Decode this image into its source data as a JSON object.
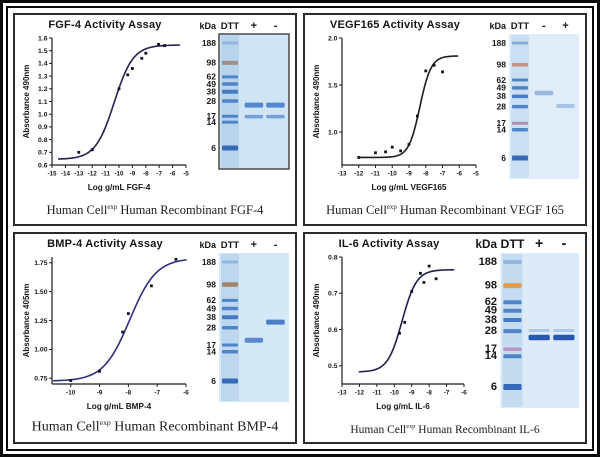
{
  "panels": [
    {
      "caption": {
        "pre": "Human Cell",
        "sup": "exp",
        "post": " Human Recombinant FGF-4"
      },
      "gel": {
        "unit_label": "kDa",
        "dtt_label": "DTT",
        "bg": "#cfe4f4",
        "ladder_bg": "#b7d4ec",
        "border": "#4a4a4a",
        "markers": [
          {
            "v": 188,
            "c": "#8fb3da",
            "h": 3
          },
          {
            "v": 98,
            "c": "#9c8c82",
            "h": 4
          },
          {
            "v": 62,
            "c": "#4a80c4",
            "h": 3
          },
          {
            "v": 49,
            "c": "#4a80c4",
            "h": 3.5
          },
          {
            "v": 38,
            "c": "#3f74bd",
            "h": 4
          },
          {
            "v": 28,
            "c": "#4a80c4",
            "h": 3.5
          },
          {
            "v": 17,
            "c": "#4a80c4",
            "h": 3
          },
          {
            "v": 14,
            "c": "#4a80c4",
            "h": 3
          },
          {
            "v": 6,
            "c": "#2f63b4",
            "h": 5
          }
        ],
        "lanes": [
          {
            "sign": "+",
            "bands": [
              {
                "kda": 24.5,
                "c": "#4d82cc",
                "h": 5
              },
              {
                "kda": 16.8,
                "c": "#6f9cd4",
                "h": 3.5
              }
            ]
          },
          {
            "sign": "-",
            "bands": [
              {
                "kda": 24.5,
                "c": "#4d82cc",
                "h": 5
              },
              {
                "kda": 16.8,
                "c": "#6f9cd4",
                "h": 3.5
              }
            ]
          }
        ]
      }
    },
    {
      "caption": {
        "pre": "Human Cell",
        "sup": "exp",
        "post": " Human Recombinant  VEGF 165"
      },
      "gel": {
        "unit_label": "kDa",
        "dtt_label": "DTT",
        "bg": "#e0edf8",
        "ladder_bg": "#cadff2",
        "border": null,
        "markers": [
          {
            "v": 188,
            "c": "#86a9d6",
            "h": 3
          },
          {
            "v": 98,
            "c": "#c68b79",
            "h": 3.5
          },
          {
            "v": 62,
            "c": "#4a80c4",
            "h": 3
          },
          {
            "v": 49,
            "c": "#4a80c4",
            "h": 3.5
          },
          {
            "v": 38,
            "c": "#3f74bd",
            "h": 3.5
          },
          {
            "v": 28,
            "c": "#4a80c4",
            "h": 3.5
          },
          {
            "v": 17,
            "c": "#b488ae",
            "h": 3
          },
          {
            "v": 14,
            "c": "#4a80c4",
            "h": 3.5
          },
          {
            "v": 6,
            "c": "#2f63b4",
            "h": 5
          }
        ],
        "lanes": [
          {
            "sign": "-",
            "bands": [
              {
                "kda": 42,
                "c": "#92b6df",
                "h": 4.5
              }
            ]
          },
          {
            "sign": "+",
            "bands": [
              {
                "kda": 28.5,
                "c": "#a5c3e4",
                "h": 4
              }
            ]
          }
        ]
      }
    },
    {
      "caption": {
        "pre": "Human Cell",
        "sup": "exp",
        "post": " Human Recombinant BMP-4"
      },
      "gel": {
        "unit_label": "kDa",
        "dtt_label": "DTT",
        "bg": "#d5e8f6",
        "ladder_bg": "#bdd8ee",
        "border": null,
        "markers": [
          {
            "v": 188,
            "c": "#8fb3da",
            "h": 3
          },
          {
            "v": 98,
            "c": "#a07f5f",
            "h": 4.5
          },
          {
            "v": 62,
            "c": "#4a80c4",
            "h": 3
          },
          {
            "v": 49,
            "c": "#4a80c4",
            "h": 3.5
          },
          {
            "v": 38,
            "c": "#3f74bd",
            "h": 4
          },
          {
            "v": 28,
            "c": "#4a80c4",
            "h": 3.5
          },
          {
            "v": 17,
            "c": "#4a80c4",
            "h": 3
          },
          {
            "v": 14,
            "c": "#4a80c4",
            "h": 3.5
          },
          {
            "v": 6,
            "c": "#2f63b4",
            "h": 5
          }
        ],
        "lanes": [
          {
            "sign": "+",
            "bands": [
              {
                "kda": 19.5,
                "c": "#5585cc",
                "h": 5
              }
            ]
          },
          {
            "sign": "-",
            "bands": [
              {
                "kda": 33,
                "c": "#4377c6",
                "h": 5
              }
            ]
          }
        ]
      }
    },
    {
      "caption": {
        "pre": "Human Cell",
        "sup": "exp",
        "post": " Human Recombinant IL-6"
      },
      "gel": {
        "unit_label": "kDa",
        "dtt_label": "DTT",
        "bg": "#dcebf7",
        "ladder_bg": "#c3dcf0",
        "border": null,
        "markers": [
          {
            "v": 188,
            "c": "#8fb3da",
            "h": 4
          },
          {
            "v": 98,
            "c": "#e39b43",
            "h": 5
          },
          {
            "v": 62,
            "c": "#4a80c4",
            "h": 4
          },
          {
            "v": 49,
            "c": "#4a80c4",
            "h": 4
          },
          {
            "v": 38,
            "c": "#3f74bd",
            "h": 4
          },
          {
            "v": 28,
            "c": "#4a80c4",
            "h": 4
          },
          {
            "v": 17,
            "c": "#bb8ec4",
            "h": 3.5
          },
          {
            "v": 14,
            "c": "#4a80c4",
            "h": 4
          },
          {
            "v": 6,
            "c": "#2f63b4",
            "h": 6
          }
        ],
        "lanes": [
          {
            "sign": "+",
            "bands": [
              {
                "kda": 28.5,
                "c": "#a9c6e6",
                "h": 3
              },
              {
                "kda": 23.5,
                "c": "#1d4fae",
                "h": 5.5
              }
            ]
          },
          {
            "sign": "-",
            "bands": [
              {
                "kda": 28.5,
                "c": "#a9c6e6",
                "h": 3
              },
              {
                "kda": 23.5,
                "c": "#1d4fae",
                "h": 5.5
              }
            ]
          }
        ]
      }
    }
  ],
  "chart_data": [
    {
      "type": "scatter",
      "title": "FGF-4 Activity Assay",
      "xlabel": "Log g/mL FGF-4",
      "ylabel": "Absorbance 490nm",
      "xlim": [
        -15,
        -5
      ],
      "ylim": [
        0.6,
        1.6
      ],
      "xticks": [
        -15,
        -14,
        -13,
        -12,
        -11,
        -10,
        -9,
        -8,
        -7,
        -6,
        -5
      ],
      "yticks": [
        {
          "v": 0.6,
          "t": "0.6"
        },
        {
          "v": 0.7,
          "t": "0.7"
        },
        {
          "v": 0.8,
          "t": "0.8"
        },
        {
          "v": 0.9,
          "t": "0.9"
        },
        {
          "v": 1.0,
          "t": "1.0"
        },
        {
          "v": 1.1,
          "t": "1.1"
        },
        {
          "v": 1.2,
          "t": "1.2"
        },
        {
          "v": 1.3,
          "t": "1.3"
        },
        {
          "v": 1.4,
          "t": "1.4"
        },
        {
          "v": 1.5,
          "t": "1.5"
        },
        {
          "v": 1.6,
          "t": "1.6"
        }
      ],
      "points": [
        [
          -13,
          0.7
        ],
        [
          -12,
          0.72
        ],
        [
          -10,
          1.2
        ],
        [
          -9.35,
          1.31
        ],
        [
          -9,
          1.36
        ],
        [
          -8.3,
          1.44
        ],
        [
          -8,
          1.48
        ],
        [
          -7.05,
          1.55
        ],
        [
          -6.6,
          1.54
        ]
      ],
      "curve": {
        "model": "4PL",
        "bottom": 0.645,
        "top": 1.545,
        "logEC50": -10.35,
        "hill": 0.62,
        "xstart": -14.5,
        "xend": -5.5
      },
      "curve_color": "#23234f",
      "point_color": "#101028",
      "grid": false,
      "legend": false
    },
    {
      "type": "scatter",
      "title": "VEGF165 Activity Assay",
      "xlabel": "Log g/mL VEGF165",
      "ylabel": "Absorbance 490nm",
      "xlim": [
        -13,
        -5
      ],
      "ylim": [
        0.65,
        2.0
      ],
      "xticks": [
        -13,
        -12,
        -11,
        -10,
        -9,
        -8,
        -7,
        -6,
        -5
      ],
      "yticks": [
        {
          "v": 1.0,
          "t": "1.0"
        },
        {
          "v": 1.5,
          "t": "1.5"
        },
        {
          "v": 2.0,
          "t": "2.0"
        }
      ],
      "points": [
        [
          -12,
          0.73
        ],
        [
          -11,
          0.78
        ],
        [
          -10.4,
          0.79
        ],
        [
          -10,
          0.84
        ],
        [
          -9.5,
          0.8
        ],
        [
          -9,
          0.87
        ],
        [
          -8.5,
          1.17
        ],
        [
          -8,
          1.65
        ],
        [
          -7.5,
          1.71
        ],
        [
          -7,
          1.64
        ]
      ],
      "curve": {
        "model": "4PL",
        "bottom": 0.73,
        "top": 1.81,
        "logEC50": -8.35,
        "hill": 1.3,
        "xstart": -12,
        "xend": -6.1
      },
      "curve_color": "#1c1c1c",
      "point_color": "#141414",
      "grid": false,
      "legend": false
    },
    {
      "type": "scatter",
      "title": "BMP-4 Activity Assay",
      "xlabel": "Log g/mL BMP-4",
      "ylabel": "Absorbance 405nm",
      "xlim": [
        -10.65,
        -6
      ],
      "ylim": [
        0.7,
        1.8
      ],
      "xticks": [
        -10,
        -9,
        -8,
        -7,
        -6
      ],
      "yticks": [
        {
          "v": 0.75,
          "t": "0.75"
        },
        {
          "v": 1.0,
          "t": "1.00"
        },
        {
          "v": 1.25,
          "t": "1.25"
        },
        {
          "v": 1.5,
          "t": "1.50"
        },
        {
          "v": 1.75,
          "t": "1.75"
        }
      ],
      "points": [
        [
          -10,
          0.73
        ],
        [
          -9,
          0.81
        ],
        [
          -8.2,
          1.15
        ],
        [
          -8,
          1.31
        ],
        [
          -7.2,
          1.55
        ],
        [
          -6.35,
          1.78
        ]
      ],
      "curve": {
        "model": "4PL",
        "bottom": 0.725,
        "top": 1.79,
        "logEC50": -7.95,
        "hill": 0.95,
        "xstart": -10.6,
        "xend": -6.0
      },
      "curve_color": "#2e2e7e",
      "point_color": "#14142e",
      "grid": false,
      "legend": false
    },
    {
      "type": "scatter",
      "title": "IL-6 Activity Assay",
      "xlabel": "Log g/mL IL-6",
      "ylabel": "Absorbance 490nm",
      "xlim": [
        -13,
        -6
      ],
      "ylim": [
        0.45,
        0.8
      ],
      "xticks": [
        -13,
        -12,
        -11,
        -10,
        -9,
        -8,
        -7,
        -6
      ],
      "yticks": [
        {
          "v": 0.5,
          "t": "0.5"
        },
        {
          "v": 0.6,
          "t": "0.6"
        },
        {
          "v": 0.7,
          "t": "0.7"
        },
        {
          "v": 0.8,
          "t": "0.8"
        }
      ],
      "points": [
        [
          -9.7,
          0.59
        ],
        [
          -9.4,
          0.62
        ],
        [
          -9,
          0.705
        ],
        [
          -8.5,
          0.755
        ],
        [
          -8.3,
          0.73
        ],
        [
          -8,
          0.775
        ],
        [
          -7.6,
          0.74
        ]
      ],
      "curve": {
        "model": "4PL",
        "bottom": 0.483,
        "top": 0.765,
        "logEC50": -9.55,
        "hill": 1.05,
        "xstart": -12,
        "xend": -6.6
      },
      "curve_color": "#1f1f4e",
      "point_color": "#101028",
      "grid": false,
      "legend": false
    }
  ]
}
